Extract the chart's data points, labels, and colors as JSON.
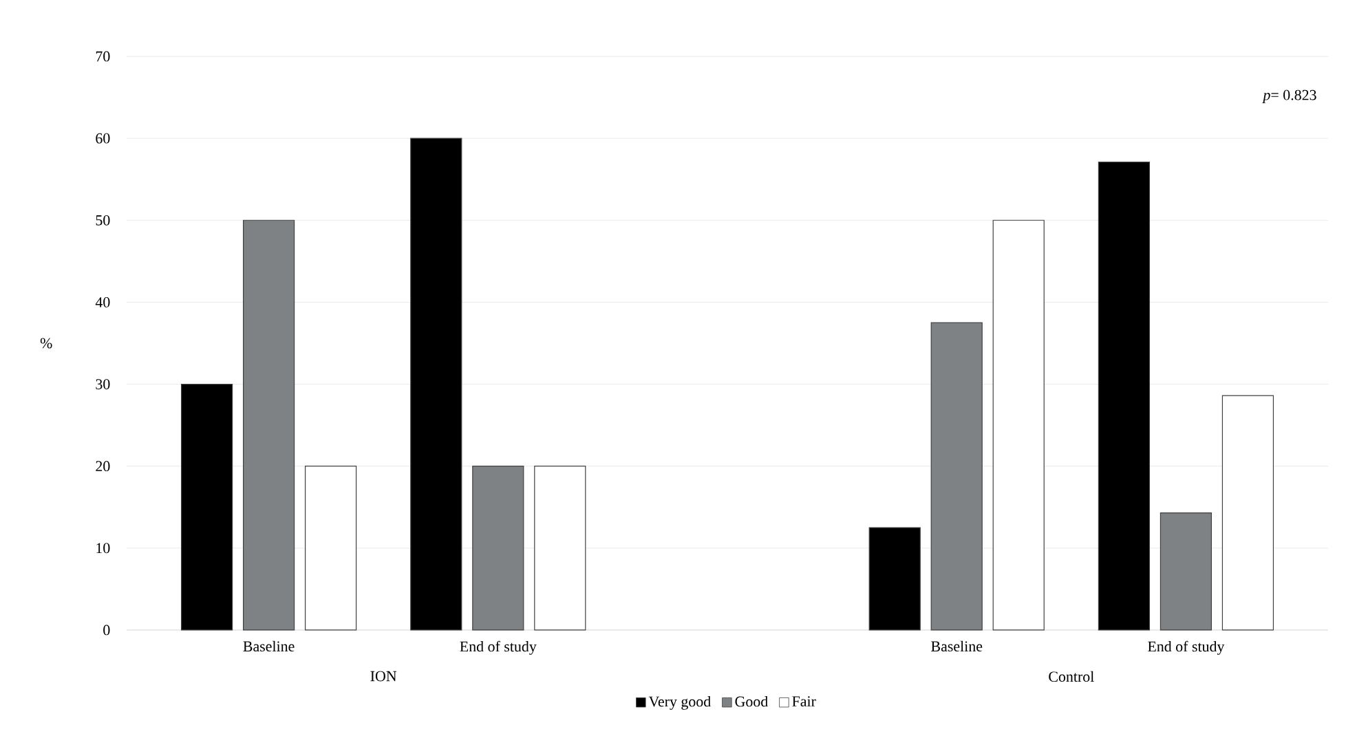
{
  "chart_data": {
    "type": "bar",
    "ylabel": "%",
    "categories": [
      "Baseline",
      "End of study",
      null,
      "Baseline",
      "End of study"
    ],
    "series": [
      {
        "name": "Very good",
        "color": "#000000",
        "values": [
          30,
          60,
          null,
          12.5,
          57.1
        ]
      },
      {
        "name": "Good",
        "color": "#7f8284",
        "values": [
          50,
          20,
          null,
          37.5,
          14.3
        ]
      },
      {
        "name": "Fair",
        "color": "#ffffff",
        "values": [
          20,
          20,
          null,
          50,
          28.6
        ]
      }
    ],
    "ylim": [
      0,
      70
    ],
    "yticks": [
      0,
      10,
      20,
      30,
      40,
      50,
      60,
      70
    ],
    "grid": "y",
    "legend": "bottom",
    "annotations": [
      "*p*= 0.823",
      "ION",
      "Control"
    ]
  }
}
